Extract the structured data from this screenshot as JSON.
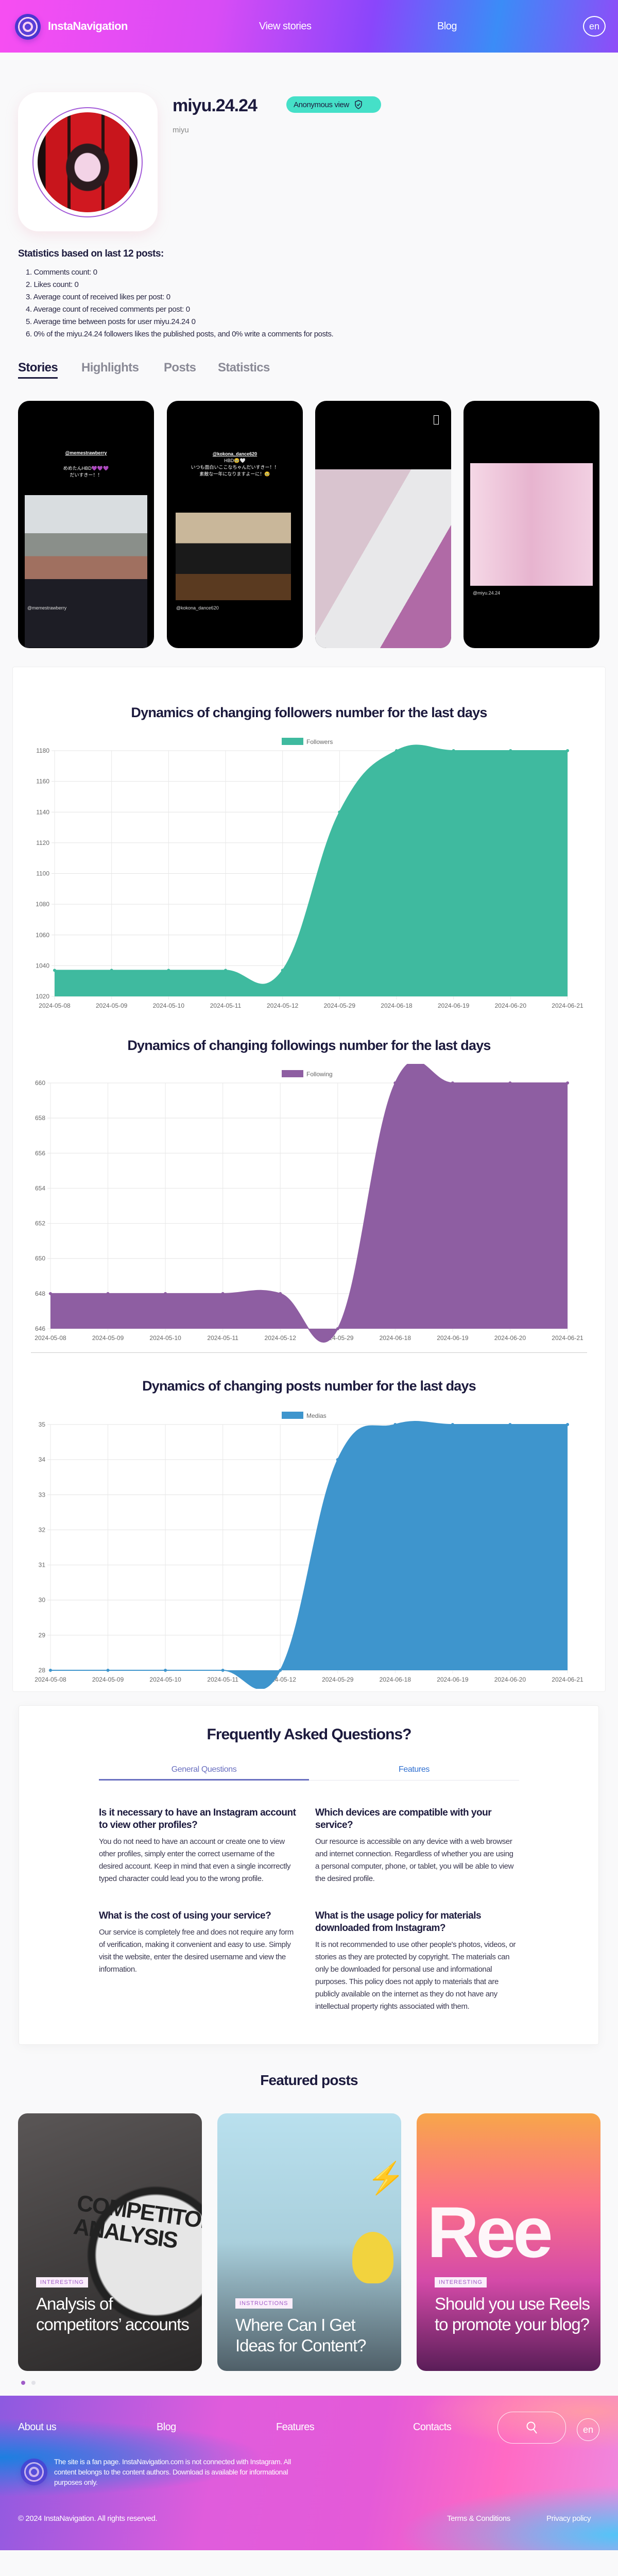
{
  "header": {
    "brand": "InstaNavigation",
    "nav": [
      "View stories",
      "Blog"
    ],
    "lang": "en"
  },
  "profile": {
    "username": "miyu.24.24",
    "badge": "Anonymous view",
    "full_name": "miyu"
  },
  "stats": {
    "heading": "Statistics based on last 12 posts:",
    "items": [
      "1. Comments count: 0",
      "2. Likes count: 0",
      "3. Average count of received likes per post: 0",
      "4. Average count of received comments per post: 0",
      "5. Average time between posts for user miyu.24.24 0",
      "6. 0% of the miyu.24.24 followers likes the published posts, and 0% write a comments for posts."
    ]
  },
  "tabs": [
    "Stories",
    "Highlights",
    "Posts",
    "Statistics"
  ],
  "stories": [
    {
      "top_mention": "@memestrawberry",
      "caption": [
        "めめたんHBD💜💜💜",
        "だいすきー！！"
      ],
      "handle": "@memestrawberry"
    },
    {
      "top_mention": "@kokona_dance620",
      "caption": [
        "HBD🥹🤍",
        "いつも面白いここなちゃんだいすきー！！",
        "素敵な一年になりますよーに！🥹"
      ],
      "handle": "@kokona_dance620"
    },
    {
      "top_mention": "",
      "caption": [],
      "handle": ""
    },
    {
      "top_mention": "",
      "caption": [],
      "handle": "@miyu.24.24"
    }
  ],
  "chart_data": [
    {
      "type": "area",
      "title": "Dynamics of changing followers number for the last days",
      "legend": "Followers",
      "color": "#3fba9f",
      "categories": [
        "2024-05-08",
        "2024-05-09",
        "2024-05-10",
        "2024-05-11",
        "2024-05-12",
        "2024-05-29",
        "2024-06-18",
        "2024-06-19",
        "2024-06-20",
        "2024-06-21"
      ],
      "values": [
        1037,
        1037,
        1037,
        1037,
        1037,
        1140,
        1180,
        1180,
        1180,
        1180
      ],
      "ylim": [
        1020,
        1180
      ],
      "ystep": 20,
      "grid": true,
      "legend_position": "top"
    },
    {
      "type": "area",
      "title": "Dynamics of changing followings number for the last days",
      "legend": "Following",
      "color": "#8e5ea2",
      "categories": [
        "2024-05-08",
        "2024-05-09",
        "2024-05-10",
        "2024-05-11",
        "2024-05-12",
        "2024-05-29",
        "2024-06-18",
        "2024-06-19",
        "2024-06-20",
        "2024-06-21"
      ],
      "values": [
        648,
        648,
        648,
        648,
        648,
        646,
        660,
        660,
        660,
        660
      ],
      "ylim": [
        646,
        660
      ],
      "ystep": 2,
      "grid": true,
      "legend_position": "top"
    },
    {
      "type": "area",
      "title": "Dynamics of changing posts number for the last days",
      "legend": "Medias",
      "color": "#3e95cd",
      "categories": [
        "2024-05-08",
        "2024-05-09",
        "2024-05-10",
        "2024-05-11",
        "2024-05-12",
        "2024-05-29",
        "2024-06-18",
        "2024-06-19",
        "2024-06-20",
        "2024-06-21"
      ],
      "values": [
        28,
        28,
        28,
        28,
        28,
        34,
        35,
        35,
        35,
        35
      ],
      "ylim": [
        28,
        35
      ],
      "ystep": 1,
      "grid": true,
      "legend_position": "top"
    }
  ],
  "faq": {
    "title": "Frequently Asked Questions?",
    "tabs": [
      "General Questions",
      "Features"
    ],
    "items": [
      {
        "q": "Is it necessary to have an Instagram account to view other profiles?",
        "a": "You do not need to have an account or create one to view other profiles, simply enter the correct username of the desired account. Keep in mind that even a single incorrectly typed character could lead you to the wrong profile."
      },
      {
        "q": "Which devices are compatible with your service?",
        "a": "Our resource is accessible on any device with a web browser and internet connection. Regardless of whether you are using a personal computer, phone, or tablet, you will be able to view the desired profile."
      },
      {
        "q": "What is the cost of using your service?",
        "a": "Our service is completely free and does not require any form of verification, making it convenient and easy to use. Simply visit the website, enter the desired username and view the information."
      },
      {
        "q": "What is the usage policy for materials downloaded from Instagram?",
        "a": "It is not recommended to use other people's photos, videos, or stories as they are protected by copyright. The materials can only be downloaded for personal use and informational purposes. This policy does not apply to materials that are publicly available on the internet as they do not have any intellectual property rights associated with them."
      }
    ]
  },
  "featured": {
    "title": "Featured posts",
    "posts": [
      {
        "tag": "INTERESTING",
        "title": "Analysis of competitors’ accounts",
        "image_text": "COMPETITOR ANALYSIS"
      },
      {
        "tag": "INSTRUCTIONS",
        "title": "Where Can I Get Ideas for Content?"
      },
      {
        "tag": "INTERESTING",
        "title": "Should you use Reels to promote your blog?",
        "image_text": "Ree"
      }
    ],
    "pages": 2,
    "active_page": 1
  },
  "footer": {
    "nav": [
      "About us",
      "Blog",
      "Features",
      "Contacts"
    ],
    "lang": "en",
    "note": "The site is a fan page. InstaNavigation.com is not connected with Instagram. All content belongs to the content authors. Download is available for informational purposes only.",
    "copyright": "© 2024 InstaNavigation. All rights reserved.",
    "links": [
      "Terms & Conditions",
      "Privacy policy"
    ]
  }
}
